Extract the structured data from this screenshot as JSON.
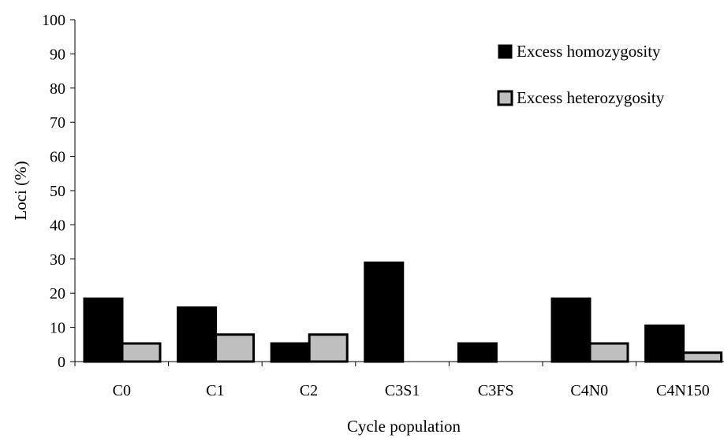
{
  "chart_data": {
    "type": "bar",
    "categories": [
      "C0",
      "C1",
      "C2",
      "C3S1",
      "C3FS",
      "C4N0",
      "C4N150"
    ],
    "series": [
      {
        "name": "Excess homozygosity",
        "values": [
          18.4,
          15.8,
          5.3,
          28.9,
          5.3,
          18.4,
          10.5
        ],
        "color": "#000000"
      },
      {
        "name": "Excess heterozygosity",
        "values": [
          5.3,
          7.9,
          7.9,
          0,
          0,
          5.3,
          2.6
        ],
        "color": "#bfbfbf"
      }
    ],
    "xlabel": "Cycle population",
    "ylabel": "Loci (%)",
    "ylim": [
      0,
      100
    ],
    "yticks": [
      0,
      10,
      20,
      30,
      40,
      50,
      60,
      70,
      80,
      90,
      100
    ],
    "grid": false,
    "legend_position": "top-right"
  }
}
